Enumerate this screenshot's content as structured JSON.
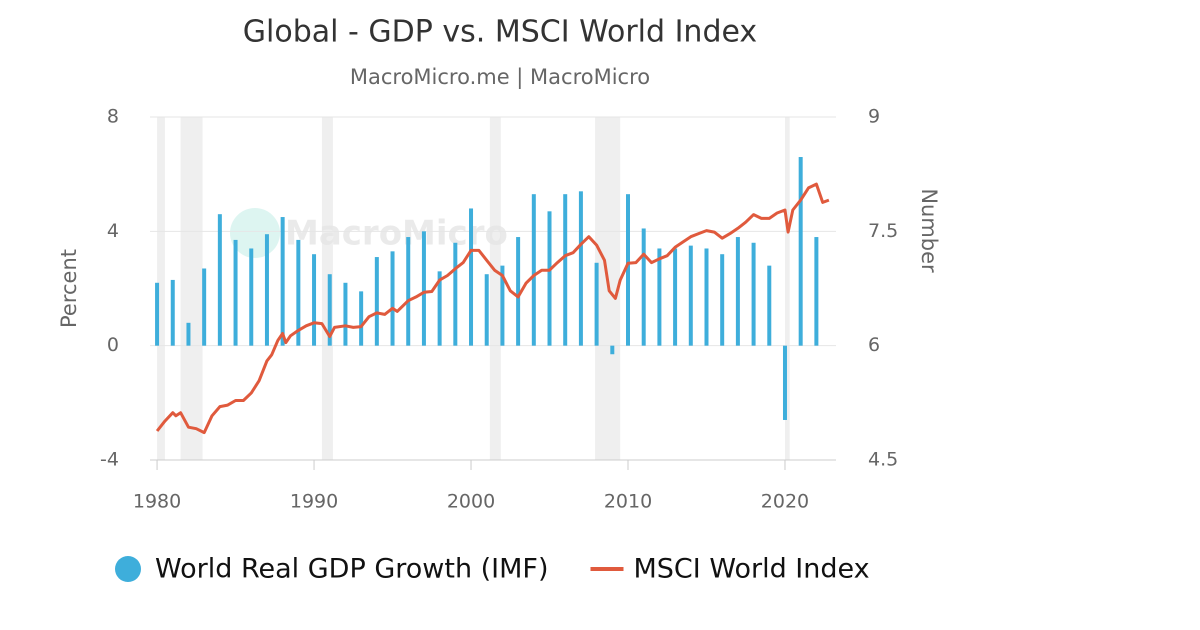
{
  "chart_data": {
    "type": "bar-line",
    "title": "Global - GDP vs. MSCI World Index",
    "subtitle": "MacroMicro.me | MacroMicro",
    "watermark": "MacroMicro",
    "y_label": "Percent",
    "y2_label": "Number",
    "xlim": [
      1979.55,
      2023.25
    ],
    "xticks": [
      1980,
      1990,
      2000,
      2010,
      2020
    ],
    "ylim": [
      -4,
      8
    ],
    "yticks": [
      -4,
      0,
      4,
      8
    ],
    "y2lim": [
      4.5,
      9
    ],
    "y2ticks": [
      4.5,
      6,
      7.5,
      9
    ],
    "grid": true,
    "legend": "bottom",
    "shaded_ranges": [
      [
        1980.0,
        1980.5
      ],
      [
        1981.5,
        1982.9
      ],
      [
        1990.5,
        1991.2
      ],
      [
        2001.2,
        2001.9
      ],
      [
        2007.9,
        2009.5
      ],
      [
        2020.0,
        2020.3
      ]
    ],
    "series": [
      {
        "name": "World Real GDP Growth (IMF)",
        "type": "bar",
        "color": "#3eaedb",
        "x": [
          1980,
          1981,
          1982,
          1983,
          1984,
          1985,
          1986,
          1987,
          1988,
          1989,
          1990,
          1991,
          1992,
          1993,
          1994,
          1995,
          1996,
          1997,
          1998,
          1999,
          2000,
          2001,
          2002,
          2003,
          2004,
          2005,
          2006,
          2007,
          2008,
          2009,
          2010,
          2011,
          2012,
          2013,
          2014,
          2015,
          2016,
          2017,
          2018,
          2019,
          2020,
          2021,
          2022
        ],
        "values": [
          2.2,
          2.3,
          0.8,
          2.7,
          4.6,
          3.7,
          3.4,
          3.9,
          4.5,
          3.7,
          3.2,
          2.5,
          2.2,
          1.9,
          3.1,
          3.3,
          3.8,
          4.0,
          2.6,
          3.6,
          4.8,
          2.5,
          2.8,
          3.8,
          5.3,
          4.7,
          5.3,
          5.4,
          2.9,
          -0.3,
          5.3,
          4.1,
          3.4,
          3.4,
          3.5,
          3.4,
          3.2,
          3.8,
          3.6,
          2.8,
          -2.6,
          6.6,
          3.8
        ]
      },
      {
        "name": "MSCI World Index",
        "type": "line",
        "axis": "y2",
        "color": "#e05a3d",
        "x": [
          1980.0,
          1980.5,
          1981.0,
          1981.2,
          1981.5,
          1982.0,
          1982.5,
          1983.0,
          1983.5,
          1984.0,
          1984.5,
          1985.0,
          1985.5,
          1986.0,
          1986.5,
          1987.0,
          1987.3,
          1987.7,
          1988.0,
          1988.2,
          1988.5,
          1989.0,
          1989.5,
          1990.0,
          1990.5,
          1991.0,
          1991.3,
          1992.0,
          1992.5,
          1993.0,
          1993.5,
          1994.0,
          1994.5,
          1995.0,
          1995.3,
          1996.0,
          1996.5,
          1997.0,
          1997.5,
          1998.0,
          1998.5,
          1999.0,
          1999.5,
          2000.0,
          2000.5,
          2001.0,
          2001.5,
          2002.0,
          2002.5,
          2003.0,
          2003.5,
          2004.0,
          2004.5,
          2005.0,
          2005.5,
          2006.0,
          2006.5,
          2007.0,
          2007.5,
          2008.0,
          2008.5,
          2008.8,
          2009.2,
          2009.5,
          2010.0,
          2010.5,
          2011.0,
          2011.5,
          2012.0,
          2012.5,
          2013.0,
          2013.5,
          2014.0,
          2014.5,
          2015.0,
          2015.5,
          2016.0,
          2016.5,
          2017.0,
          2017.5,
          2018.0,
          2018.5,
          2019.0,
          2019.5,
          2020.0,
          2020.2,
          2020.5,
          2021.0,
          2021.5,
          2022.0,
          2022.4,
          2022.8
        ],
        "values": [
          4.88,
          5.01,
          5.12,
          5.08,
          5.12,
          4.93,
          4.91,
          4.86,
          5.08,
          5.2,
          5.22,
          5.28,
          5.28,
          5.38,
          5.54,
          5.8,
          5.88,
          6.07,
          6.16,
          6.04,
          6.13,
          6.2,
          6.26,
          6.3,
          6.29,
          6.12,
          6.24,
          6.26,
          6.24,
          6.25,
          6.38,
          6.43,
          6.41,
          6.49,
          6.45,
          6.59,
          6.64,
          6.7,
          6.71,
          6.86,
          6.92,
          7.01,
          7.09,
          7.25,
          7.25,
          7.12,
          6.99,
          6.92,
          6.72,
          6.64,
          6.82,
          6.92,
          6.99,
          6.99,
          7.09,
          7.18,
          7.22,
          7.33,
          7.43,
          7.32,
          7.12,
          6.72,
          6.62,
          6.86,
          7.08,
          7.09,
          7.2,
          7.09,
          7.14,
          7.18,
          7.29,
          7.36,
          7.43,
          7.47,
          7.51,
          7.49,
          7.41,
          7.47,
          7.54,
          7.62,
          7.72,
          7.67,
          7.67,
          7.74,
          7.78,
          7.49,
          7.78,
          7.91,
          8.07,
          8.12,
          7.88,
          7.91
        ]
      }
    ]
  }
}
